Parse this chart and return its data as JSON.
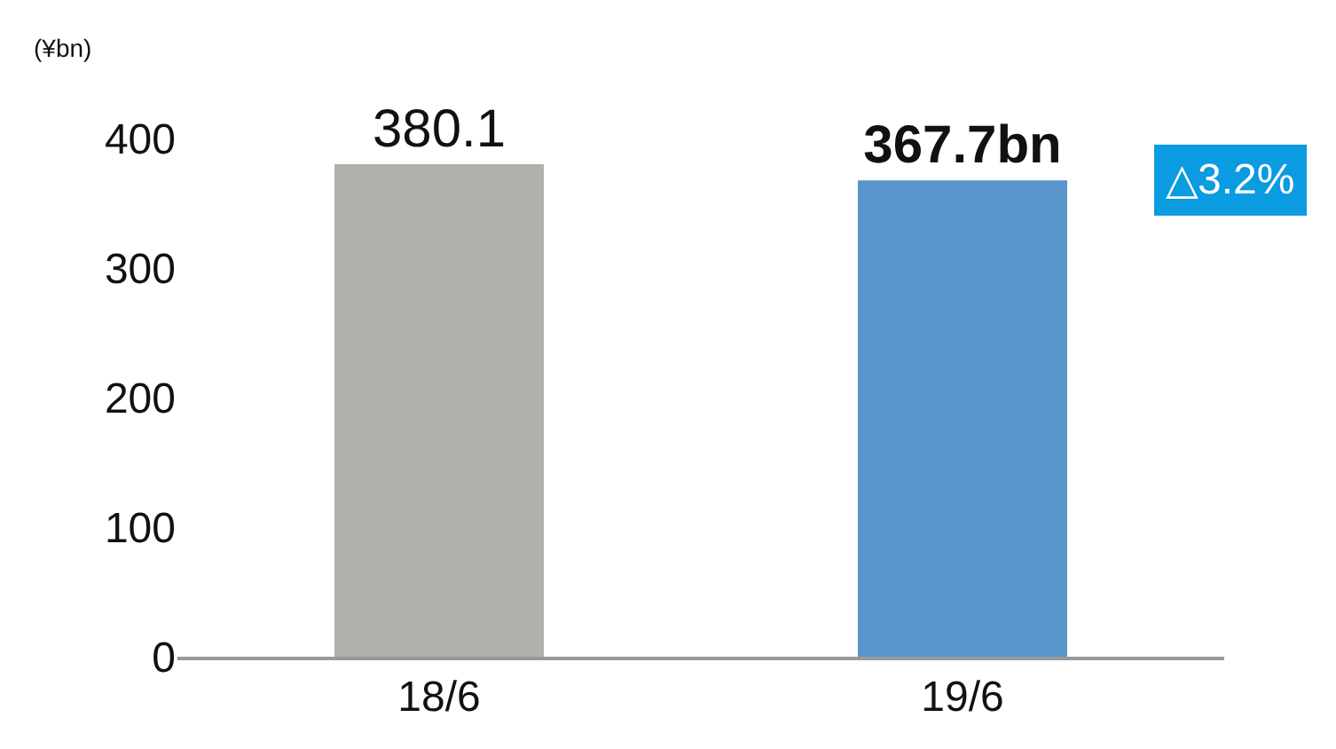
{
  "chart_data": {
    "type": "bar",
    "ylabel": "(¥bn)",
    "categories": [
      "18/6",
      "19/6"
    ],
    "values": [
      380.1,
      367.7
    ],
    "colors": [
      "#b0b0ac",
      "#5896cc"
    ],
    "value_labels": [
      "380.1",
      "367.7bn"
    ],
    "annotations": [
      "△3.2%"
    ],
    "ylim": [
      0,
      400
    ],
    "yticks": [
      0,
      100,
      200,
      300,
      400
    ],
    "legend": false
  }
}
